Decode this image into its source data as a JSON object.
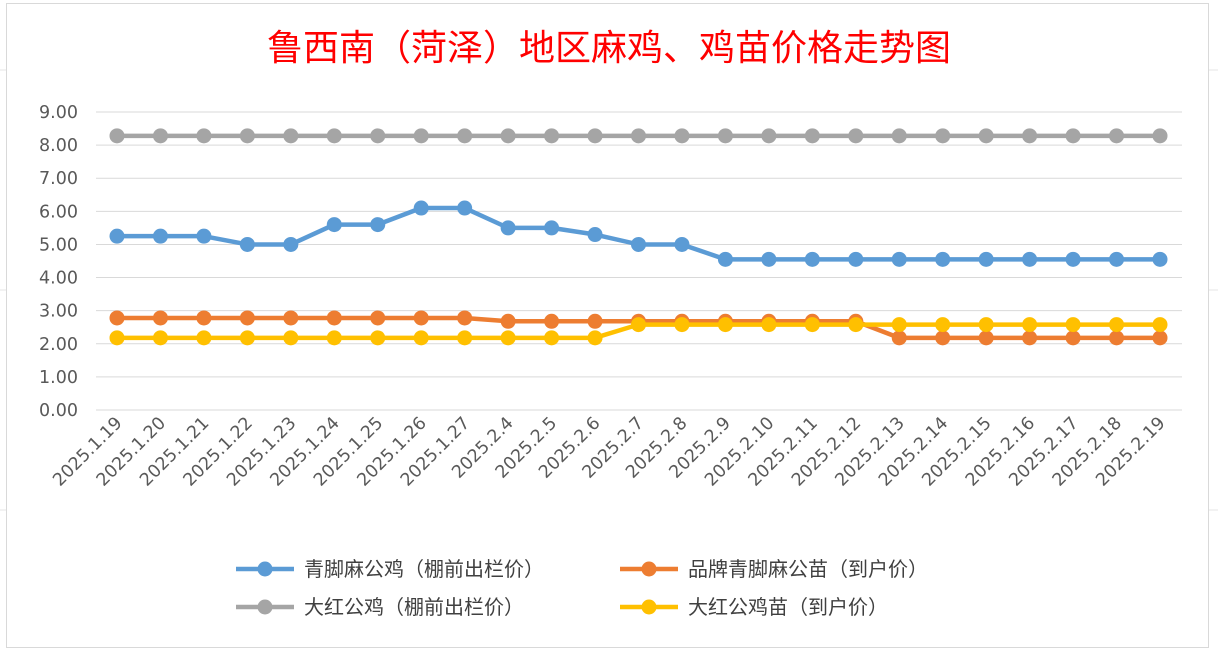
{
  "chart_data": {
    "type": "line",
    "title": "鲁西南（菏泽）地区麻鸡、鸡苗价格走势图",
    "xlabel": "",
    "ylabel": "",
    "ylim": [
      0,
      9
    ],
    "yticks": [
      "0.00",
      "1.00",
      "2.00",
      "3.00",
      "4.00",
      "5.00",
      "6.00",
      "7.00",
      "8.00",
      "9.00"
    ],
    "grid": true,
    "legend_position": "bottom",
    "categories": [
      "2025.1.19",
      "2025.1.20",
      "2025.1.21",
      "2025.1.22",
      "2025.1.23",
      "2025.1.24",
      "2025.1.25",
      "2025.1.26",
      "2025.1.27",
      "2025.2.4",
      "2025.2.5",
      "2025.2.6",
      "2025.2.7",
      "2025.2.8",
      "2025.2.9",
      "2025.2.10",
      "2025.2.11",
      "2025.2.12",
      "2025.2.13",
      "2025.2.14",
      "2025.2.15",
      "2025.2.16",
      "2025.2.17",
      "2025.2.18",
      "2025.2.19"
    ],
    "series": [
      {
        "name": "青脚麻公鸡（棚前出栏价）",
        "color": "#5b9bd5",
        "values": [
          5.25,
          5.25,
          5.25,
          5.0,
          5.0,
          5.6,
          5.6,
          6.1,
          6.1,
          5.5,
          5.5,
          5.3,
          5.0,
          5.0,
          4.55,
          4.55,
          4.55,
          4.55,
          4.55,
          4.55,
          4.55,
          4.55,
          4.55,
          4.55,
          4.55
        ]
      },
      {
        "name": "品牌青脚麻公苗（到户价）",
        "color": "#ed7d31",
        "values": [
          2.78,
          2.78,
          2.78,
          2.78,
          2.78,
          2.78,
          2.78,
          2.78,
          2.78,
          2.68,
          2.68,
          2.68,
          2.68,
          2.68,
          2.68,
          2.68,
          2.68,
          2.68,
          2.18,
          2.18,
          2.18,
          2.18,
          2.18,
          2.18,
          2.18
        ]
      },
      {
        "name": "大红公鸡（棚前出栏价）",
        "color": "#a5a5a5",
        "values": [
          8.28,
          8.28,
          8.28,
          8.28,
          8.28,
          8.28,
          8.28,
          8.28,
          8.28,
          8.28,
          8.28,
          8.28,
          8.28,
          8.28,
          8.28,
          8.28,
          8.28,
          8.28,
          8.28,
          8.28,
          8.28,
          8.28,
          8.28,
          8.28,
          8.28
        ]
      },
      {
        "name": "大红公鸡苗（到户价）",
        "color": "#ffc000",
        "values": [
          2.18,
          2.18,
          2.18,
          2.18,
          2.18,
          2.18,
          2.18,
          2.18,
          2.18,
          2.18,
          2.18,
          2.18,
          2.58,
          2.58,
          2.58,
          2.58,
          2.58,
          2.58,
          2.58,
          2.58,
          2.58,
          2.58,
          2.58,
          2.58,
          2.58
        ]
      }
    ],
    "draw_order": [
      2,
      0,
      1,
      3
    ]
  }
}
